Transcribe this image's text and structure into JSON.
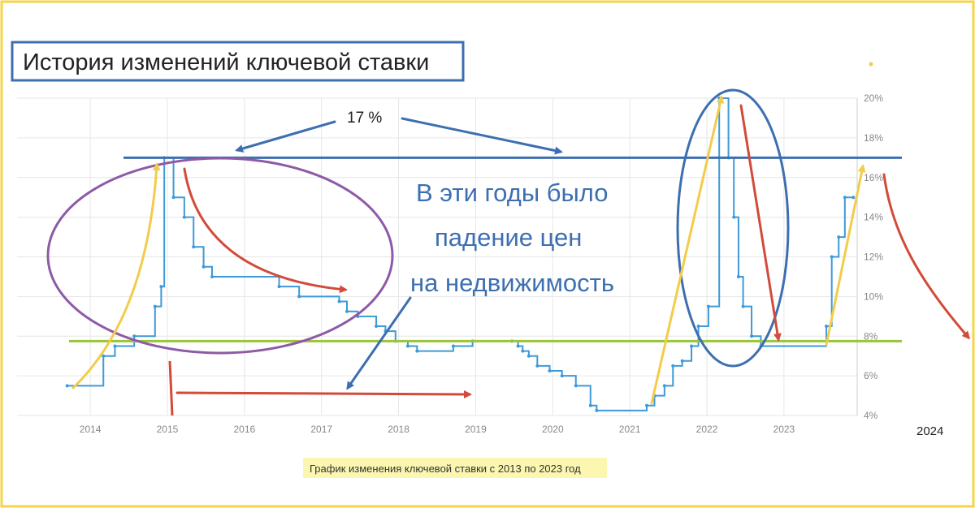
{
  "title": "История изменений ключевой ставки",
  "caption": "График изменения ключевой ставки с 2013 по 2023 год",
  "annotations": {
    "level_label": "17 %",
    "text_line1": "В эти годы было",
    "text_line2": "падение цен",
    "text_line3": "на недвижимость",
    "extra_year": "2024"
  },
  "colors": {
    "frame": "#f5d547",
    "series": "#3d9ad9",
    "level_line": "#3d6fb0",
    "avg_line": "#9ac43a",
    "up_arrow": "#f2cc4a",
    "down_arrow": "#d24a3a",
    "text": "#3d6fb0",
    "caption_bg": "#fbf6b0",
    "ellipse1": "#8e5aa6",
    "ellipse2": "#3d6fb0",
    "grid": "#e6e6e6",
    "axis_text": "#888888"
  },
  "chart_data": {
    "type": "line",
    "step": true,
    "title": "История изменений ключевой ставки",
    "xlabel": "",
    "ylabel": "",
    "xlim": [
      2013.05,
      2023.95
    ],
    "ylim": [
      4,
      20
    ],
    "x_ticks": [
      "2014",
      "2015",
      "2016",
      "2017",
      "2018",
      "2019",
      "2020",
      "2021",
      "2022",
      "2023"
    ],
    "y_ticks": [
      "4%",
      "6%",
      "8%",
      "10%",
      "12%",
      "14%",
      "16%",
      "18%",
      "20%"
    ],
    "grid": true,
    "series": [
      {
        "values": [
          [
            2013.7,
            5.5
          ],
          [
            2014.17,
            7.0
          ],
          [
            2014.32,
            7.5
          ],
          [
            2014.57,
            8.0
          ],
          [
            2014.84,
            9.5
          ],
          [
            2014.92,
            10.5
          ],
          [
            2014.96,
            17.0
          ],
          [
            2015.08,
            15.0
          ],
          [
            2015.22,
            14.0
          ],
          [
            2015.34,
            12.5
          ],
          [
            2015.47,
            11.5
          ],
          [
            2015.58,
            11.0
          ],
          [
            2016.45,
            10.5
          ],
          [
            2016.71,
            10.0
          ],
          [
            2017.23,
            9.75
          ],
          [
            2017.33,
            9.25
          ],
          [
            2017.47,
            9.0
          ],
          [
            2017.71,
            8.5
          ],
          [
            2017.83,
            8.25
          ],
          [
            2017.96,
            7.75
          ],
          [
            2018.12,
            7.5
          ],
          [
            2018.24,
            7.25
          ],
          [
            2018.71,
            7.5
          ],
          [
            2018.96,
            7.75
          ],
          [
            2019.47,
            7.75
          ],
          [
            2019.55,
            7.5
          ],
          [
            2019.61,
            7.25
          ],
          [
            2019.69,
            7.0
          ],
          [
            2019.8,
            6.5
          ],
          [
            2019.96,
            6.25
          ],
          [
            2020.12,
            6.0
          ],
          [
            2020.3,
            5.5
          ],
          [
            2020.49,
            4.5
          ],
          [
            2020.57,
            4.25
          ],
          [
            2021.22,
            4.5
          ],
          [
            2021.32,
            5.0
          ],
          [
            2021.45,
            5.5
          ],
          [
            2021.56,
            6.5
          ],
          [
            2021.68,
            6.75
          ],
          [
            2021.8,
            7.5
          ],
          [
            2021.89,
            8.5
          ],
          [
            2022.02,
            9.5
          ],
          [
            2022.16,
            20.0
          ],
          [
            2022.28,
            17.0
          ],
          [
            2022.35,
            14.0
          ],
          [
            2022.41,
            11.0
          ],
          [
            2022.47,
            9.5
          ],
          [
            2022.58,
            8.0
          ],
          [
            2022.7,
            7.5
          ],
          [
            2023.55,
            8.5
          ],
          [
            2023.62,
            12.0
          ],
          [
            2023.71,
            13.0
          ],
          [
            2023.79,
            15.0
          ],
          [
            2023.9,
            15.0
          ]
        ]
      }
    ],
    "annotations": [
      {
        "label": "17 %",
        "value": 17
      },
      {
        "value": 7.75
      }
    ]
  }
}
